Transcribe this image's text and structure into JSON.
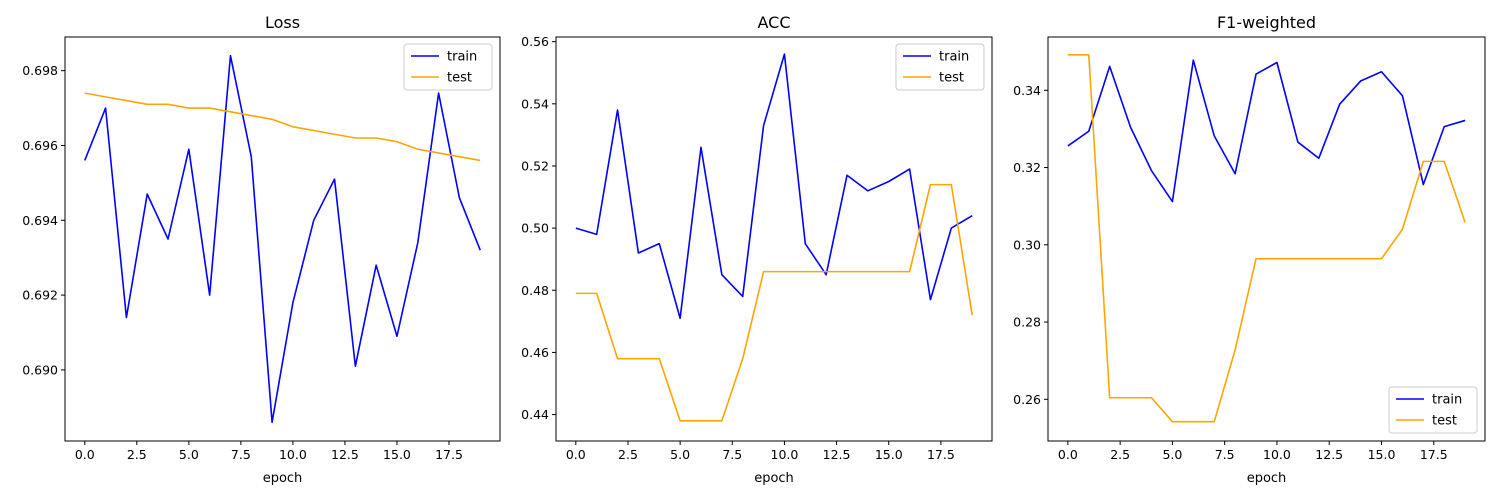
{
  "colors": {
    "train": "#0000ff",
    "test": "#ffa500"
  },
  "chart_data": [
    {
      "type": "line",
      "title": "Loss",
      "xlabel": "epoch",
      "ylabel": "",
      "legend": "top-right",
      "grid": false,
      "xlim": [
        -0.95,
        19.95
      ],
      "ylim": [
        0.6881,
        0.6989
      ],
      "xticks": [
        0,
        2.5,
        5,
        7.5,
        10,
        12.5,
        15,
        17.5
      ],
      "xtick_labels": [
        "0.0",
        "2.5",
        "5.0",
        "7.5",
        "10.0",
        "12.5",
        "15.0",
        "17.5"
      ],
      "yticks": [
        0.69,
        0.692,
        0.694,
        0.696,
        0.698
      ],
      "ytick_labels": [
        "0.690",
        "0.692",
        "0.694",
        "0.696",
        "0.698"
      ],
      "x": [
        0,
        1,
        2,
        3,
        4,
        5,
        6,
        7,
        8,
        9,
        10,
        11,
        12,
        13,
        14,
        15,
        16,
        17,
        18,
        19
      ],
      "series": [
        {
          "name": "train",
          "values": [
            0.6956,
            0.697,
            0.6914,
            0.6947,
            0.6935,
            0.6959,
            0.692,
            0.6984,
            0.6957,
            0.6886,
            0.6918,
            0.694,
            0.6951,
            0.6901,
            0.6928,
            0.6909,
            0.6934,
            0.6974,
            0.6946,
            0.6932
          ]
        },
        {
          "name": "test",
          "values": [
            0.6974,
            0.6973,
            0.6972,
            0.6971,
            0.6971,
            0.697,
            0.697,
            0.6969,
            0.6968,
            0.6967,
            0.6965,
            0.6964,
            0.6963,
            0.6962,
            0.6962,
            0.6961,
            0.6959,
            0.6958,
            0.6957,
            0.6956
          ]
        }
      ]
    },
    {
      "type": "line",
      "title": "ACC",
      "xlabel": "epoch",
      "ylabel": "",
      "legend": "top-right",
      "grid": false,
      "xlim": [
        -0.95,
        19.95
      ],
      "ylim": [
        0.4315,
        0.5615
      ],
      "xticks": [
        0,
        2.5,
        5,
        7.5,
        10,
        12.5,
        15,
        17.5
      ],
      "xtick_labels": [
        "0.0",
        "2.5",
        "5.0",
        "7.5",
        "10.0",
        "12.5",
        "15.0",
        "17.5"
      ],
      "yticks": [
        0.44,
        0.46,
        0.48,
        0.5,
        0.52,
        0.54,
        0.56
      ],
      "ytick_labels": [
        "0.44",
        "0.46",
        "0.48",
        "0.50",
        "0.52",
        "0.54",
        "0.56"
      ],
      "x": [
        0,
        1,
        2,
        3,
        4,
        5,
        6,
        7,
        8,
        9,
        10,
        11,
        12,
        13,
        14,
        15,
        16,
        17,
        18,
        19
      ],
      "series": [
        {
          "name": "train",
          "values": [
            0.5,
            0.498,
            0.538,
            0.492,
            0.495,
            0.471,
            0.526,
            0.485,
            0.478,
            0.533,
            0.556,
            0.495,
            0.485,
            0.517,
            0.512,
            0.515,
            0.519,
            0.477,
            0.5,
            0.504
          ]
        },
        {
          "name": "test",
          "values": [
            0.479,
            0.479,
            0.458,
            0.458,
            0.458,
            0.438,
            0.438,
            0.438,
            0.458,
            0.486,
            0.486,
            0.486,
            0.486,
            0.486,
            0.486,
            0.486,
            0.486,
            0.514,
            0.514,
            0.472
          ]
        }
      ]
    },
    {
      "type": "line",
      "title": "F1-weighted",
      "xlabel": "epoch",
      "ylabel": "",
      "legend": "bottom-right",
      "grid": false,
      "xlim": [
        -0.95,
        19.95
      ],
      "ylim": [
        0.2492,
        0.3538
      ],
      "xticks": [
        0,
        2.5,
        5,
        7.5,
        10,
        12.5,
        15,
        17.5
      ],
      "xtick_labels": [
        "0.0",
        "2.5",
        "5.0",
        "7.5",
        "10.0",
        "12.5",
        "15.0",
        "17.5"
      ],
      "yticks": [
        0.26,
        0.28,
        0.3,
        0.32,
        0.34
      ],
      "ytick_labels": [
        "0.26",
        "0.28",
        "0.30",
        "0.32",
        "0.34"
      ],
      "x": [
        0,
        1,
        2,
        3,
        4,
        5,
        6,
        7,
        8,
        9,
        10,
        11,
        12,
        13,
        14,
        15,
        16,
        17,
        18,
        19
      ],
      "series": [
        {
          "name": "train",
          "values": [
            0.3256,
            0.3294,
            0.3462,
            0.3304,
            0.3192,
            0.3112,
            0.3478,
            0.3282,
            0.3184,
            0.3442,
            0.3472,
            0.3266,
            0.3224,
            0.3364,
            0.3424,
            0.3448,
            0.3386,
            0.3156,
            0.3306,
            0.3322
          ]
        },
        {
          "name": "test",
          "values": [
            0.3492,
            0.3492,
            0.2604,
            0.2604,
            0.2604,
            0.2542,
            0.2542,
            0.2542,
            0.2728,
            0.2964,
            0.2964,
            0.2964,
            0.2964,
            0.2964,
            0.2964,
            0.2964,
            0.304,
            0.3216,
            0.3216,
            0.3058
          ]
        }
      ]
    }
  ]
}
